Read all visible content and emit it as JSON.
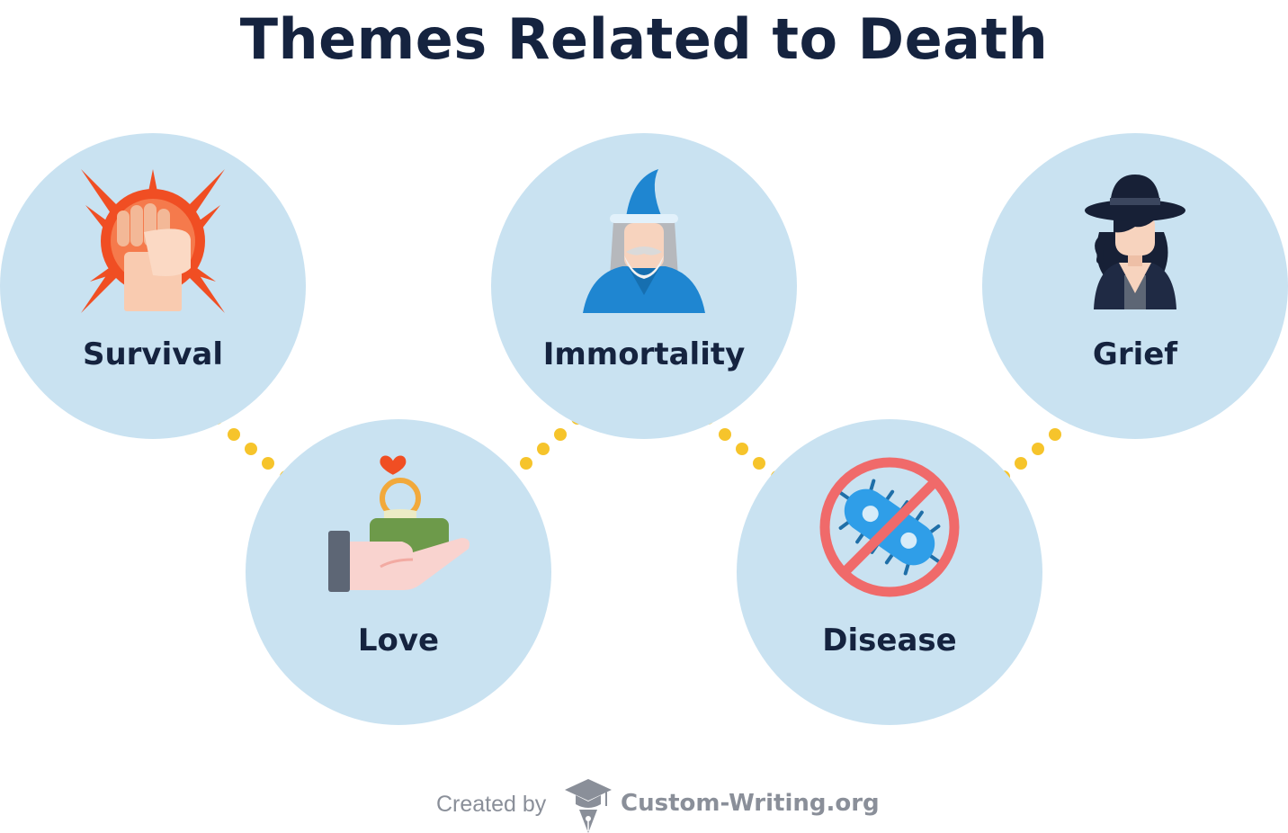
{
  "title": "Themes Related to Death",
  "themes": [
    {
      "label": "Survival",
      "icon": "raised-fist-icon"
    },
    {
      "label": "Love",
      "icon": "ring-offering-hand-icon"
    },
    {
      "label": "Immortality",
      "icon": "wizard-icon"
    },
    {
      "label": "Disease",
      "icon": "no-bacteria-icon"
    },
    {
      "label": "Grief",
      "icon": "mourning-woman-icon"
    }
  ],
  "footer": {
    "created_by": "Created by",
    "brand": "Custom-Writing.org",
    "logo_icon": "graduation-cap-pen-logo"
  },
  "colors": {
    "title": "#15233f",
    "circle": "#c9e2f1",
    "dots": "#f6c42b",
    "footer_text": "#8a8f99"
  }
}
